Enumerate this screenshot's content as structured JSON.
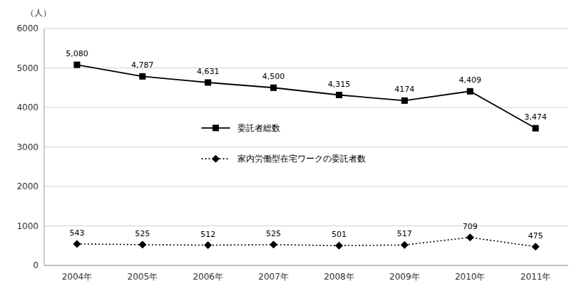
{
  "chart_data": {
    "type": "line",
    "ylabel": "（人）",
    "categories": [
      "2004年",
      "2005年",
      "2006年",
      "2007年",
      "2008年",
      "2009年",
      "2010年",
      "2011年"
    ],
    "series": [
      {
        "name": "委託者総数",
        "color": "#000000",
        "marker": "square",
        "line_style": "solid",
        "values": [
          5080,
          4787,
          4631,
          4500,
          4315,
          4174,
          4409,
          3474
        ],
        "value_labels": [
          "5,080",
          "4,787",
          "4,631",
          "4,500",
          "4,315",
          "4174",
          "4,409",
          "3,474"
        ]
      },
      {
        "name": "家内労働型在宅ワークの委託者数",
        "color": "#000000",
        "marker": "diamond",
        "line_style": "dotted",
        "values": [
          543,
          525,
          512,
          525,
          501,
          517,
          709,
          475
        ]
      }
    ],
    "ylim": [
      0,
      6000
    ],
    "yticks": [
      0,
      1000,
      2000,
      3000,
      4000,
      5000,
      6000
    ],
    "grid": true,
    "legend": "center",
    "data_labels": true
  }
}
